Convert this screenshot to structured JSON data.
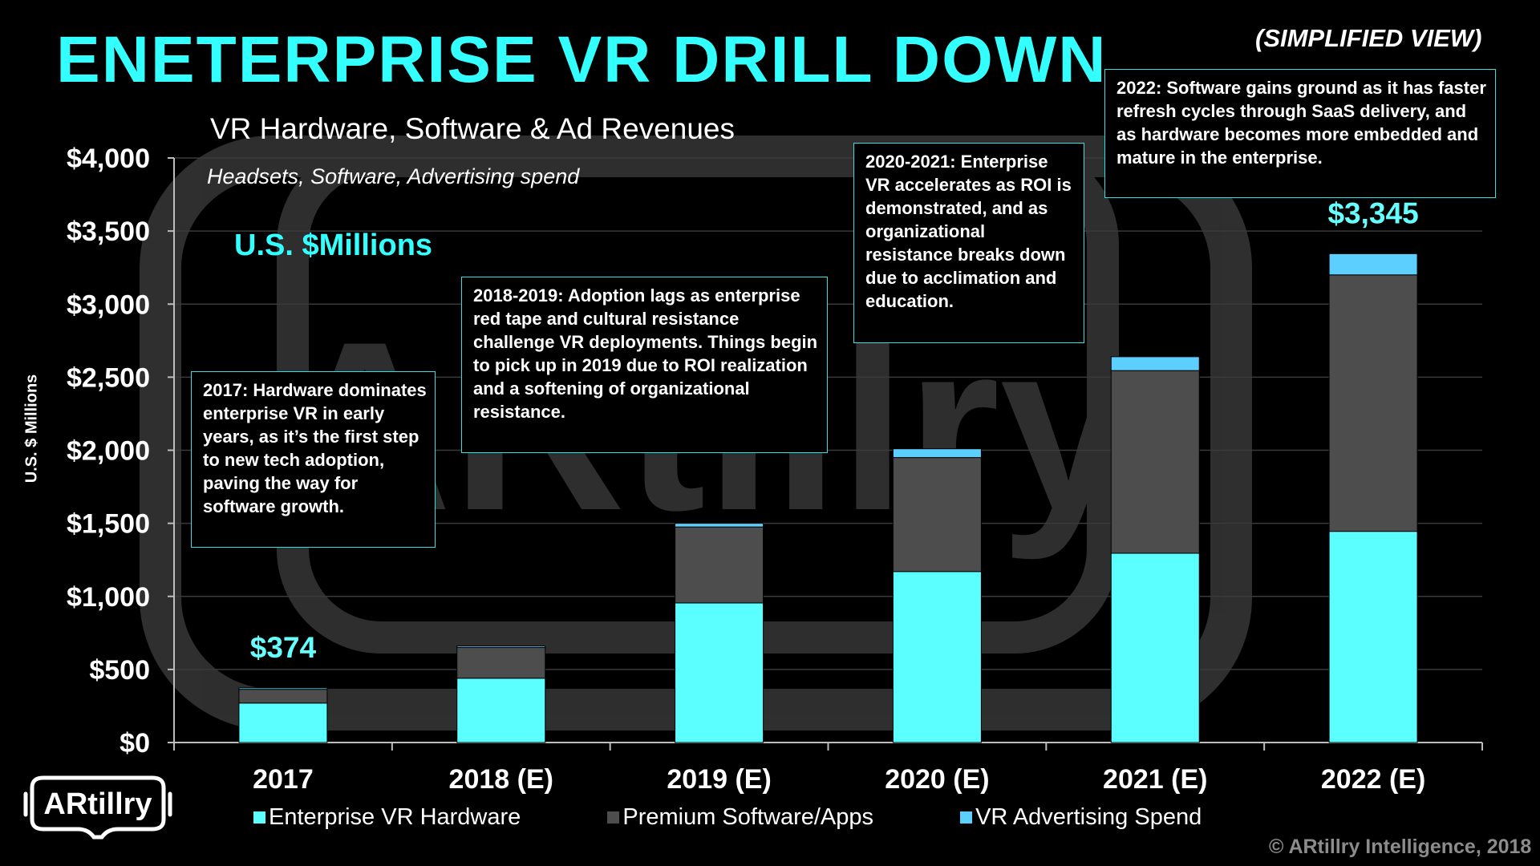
{
  "header": {
    "title": "ENETERPRISE VR DRILL DOWN",
    "view_label": "(SIMPLIFIED VIEW)"
  },
  "chart_data": {
    "type": "bar",
    "stacked": true,
    "title": "VR Hardware, Software & Ad Revenues",
    "subtitle": "Headsets, Software, Advertising spend",
    "units_label": "U.S. $Millions",
    "ylabel": "U.S. $ Millions",
    "xlabel": "",
    "categories": [
      "2017",
      "2018 (E)",
      "2019 (E)",
      "2020 (E)",
      "2021 (E)",
      "2022 (E)"
    ],
    "series": [
      {
        "name": "Enterprise VR Hardware",
        "values": [
          270,
          440,
          955,
          1170,
          1295,
          1445
        ],
        "color": "#5cffff"
      },
      {
        "name": "Premium Software/Apps",
        "values": [
          94,
          210,
          520,
          780,
          1250,
          1755
        ],
        "color": "#4d4d4d"
      },
      {
        "name": "VR Advertising Spend",
        "values": [
          10,
          10,
          25,
          60,
          95,
          145
        ],
        "color": "#5ccfff"
      }
    ],
    "ylim": [
      0,
      4000
    ],
    "yticks": [
      0,
      500,
      1000,
      1500,
      2000,
      2500,
      3000,
      3500,
      4000
    ],
    "ytick_labels": [
      "$0",
      "$500",
      "$1,000",
      "$1,500",
      "$2,000",
      "$2,500",
      "$3,000",
      "$3,500",
      "$4,000"
    ],
    "grid": true,
    "legend_position": "bottom",
    "data_labels": [
      {
        "category": "2017",
        "text": "$374"
      },
      {
        "category": "2022 (E)",
        "text": "$3,345"
      }
    ]
  },
  "annotations": [
    {
      "text": "2017: Hardware dominates enterprise VR in early years, as it’s the first step to new tech adoption, paving the way for software growth."
    },
    {
      "text": "2018-2019: Adoption lags as enterprise red tape and cultural resistance challenge VR deployments. Things begin to pick up in 2019 due to ROI realization and a softening of organizational resistance."
    },
    {
      "text": "2020-2021: Enterprise VR accelerates as ROI is demonstrated, and as organizational resistance breaks down due to acclimation and education."
    },
    {
      "text": "2022: Software gains ground as it has faster refresh cycles through SaaS delivery, and as hardware becomes more embedded and mature in the enterprise."
    }
  ],
  "watermark": {
    "text": "ARtillry"
  },
  "logo": {
    "text": "ARtillry"
  },
  "footer": {
    "copyright": "© ARtillry Intelligence, 2018"
  },
  "colors": {
    "accent": "#33ffff",
    "background": "#000000",
    "annotation_border": "#33e0e6"
  }
}
